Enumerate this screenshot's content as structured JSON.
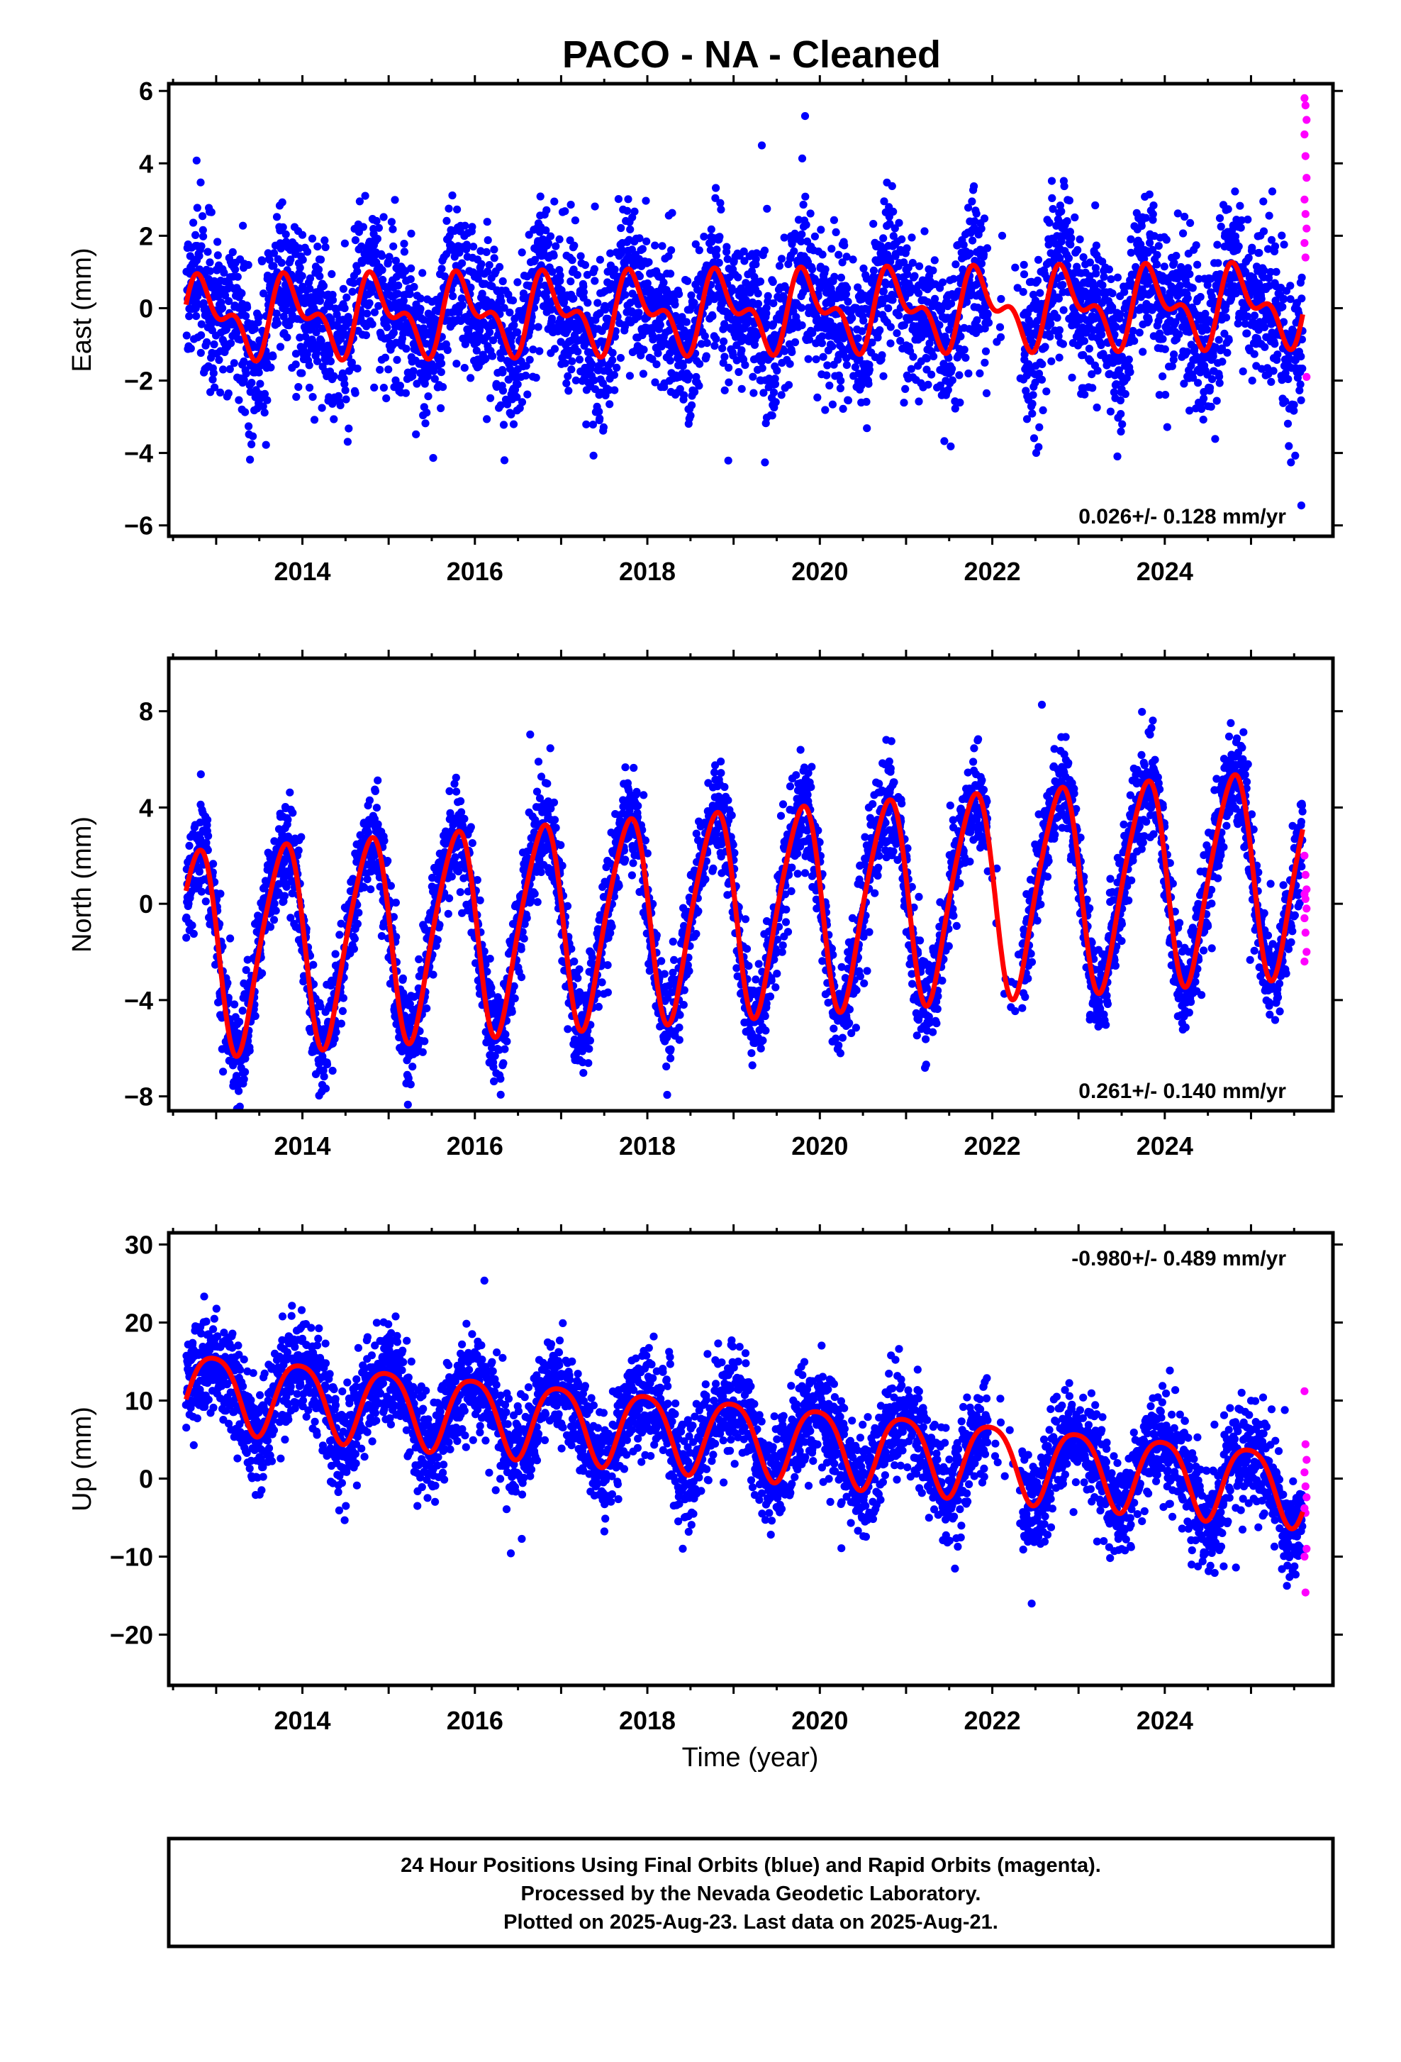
{
  "title": "PACO  - NA - Cleaned",
  "xlabel": "Time (year)",
  "footer": {
    "lines": [
      "24 Hour Positions Using Final Orbits (blue) and Rapid Orbits (magenta).",
      "Processed by the Nevada Geodetic Laboratory.",
      "Plotted on 2025-Aug-23. Last data on 2025-Aug-21."
    ]
  },
  "colors": {
    "final": "#0000ff",
    "rapid": "#ff00ff",
    "model": "#ff0000",
    "frame": "#000000"
  },
  "chart_data": [
    {
      "type": "scatter",
      "name": "east",
      "ylabel": "East (mm)",
      "rate": "0.026+/- 0.128 mm/yr",
      "rate_position": "bottom-right",
      "xlim": [
        2012.45,
        2025.95
      ],
      "ylim": [
        -6.3,
        6.2
      ],
      "xticks": [
        2014,
        2016,
        2018,
        2020,
        2022,
        2024
      ],
      "yticks": [
        -6,
        -4,
        -2,
        0,
        2,
        4,
        6
      ],
      "model": {
        "offset": -0.1,
        "trend": 0.026,
        "annual_amp": 0.85,
        "annual_phase": 0.62,
        "semi_amp": 0.55,
        "semi_phase": 0.12,
        "start": 2012.65,
        "end": 2025.6,
        "gap": [
          2021.95,
          2022.35
        ]
      },
      "scatter_sd": 1.05,
      "rapid_values": [
        5.8,
        5.6,
        5.2,
        4.8,
        4.2,
        3.6,
        3.0,
        2.6,
        2.2,
        1.8,
        1.4,
        -1.9
      ]
    },
    {
      "type": "scatter",
      "name": "north",
      "ylabel": "North (mm)",
      "rate": "0.261+/- 0.140 mm/yr",
      "rate_position": "bottom-right",
      "xlim": [
        2012.45,
        2025.95
      ],
      "ylim": [
        -8.6,
        10.2
      ],
      "xticks": [
        2014,
        2016,
        2018,
        2020,
        2022,
        2024
      ],
      "yticks": [
        -8,
        -4,
        0,
        4,
        8
      ],
      "model": {
        "offset": -0.3,
        "trend": 0.261,
        "annual_amp": 4.2,
        "annual_phase": 0.52,
        "semi_amp": 0.6,
        "semi_phase": 0.3,
        "start": 2012.65,
        "end": 2025.6,
        "gap": [
          2021.95,
          2022.35
        ]
      },
      "scatter_sd": 1.05,
      "rapid_values": [
        2.0,
        1.2,
        0.6,
        0.4,
        0.2,
        -0.2,
        -0.6,
        -1.2,
        -2.0,
        -2.4
      ]
    },
    {
      "type": "scatter",
      "name": "up",
      "ylabel": "Up (mm)",
      "rate": "-0.980+/- 0.489 mm/yr",
      "rate_position": "top-right",
      "xlim": [
        2012.45,
        2025.95
      ],
      "ylim": [
        -26.5,
        31.5
      ],
      "xticks": [
        2014,
        2016,
        2018,
        2020,
        2022,
        2024
      ],
      "yticks": [
        -20,
        -10,
        0,
        10,
        20,
        30
      ],
      "model": {
        "offset": 5.5,
        "trend": -0.98,
        "annual_amp": 4.8,
        "annual_phase": 0.72,
        "semi_amp": 0.8,
        "semi_phase": 0.1,
        "start": 2012.65,
        "end": 2025.6,
        "gap": [
          2021.95,
          2022.35
        ]
      },
      "scatter_sd": 3.3,
      "rapid_values": [
        11.2,
        4.4,
        2.4,
        0.8,
        -1.0,
        -2.4,
        -3.8,
        -4.4,
        -9.0,
        -10.0,
        -14.6
      ]
    }
  ]
}
